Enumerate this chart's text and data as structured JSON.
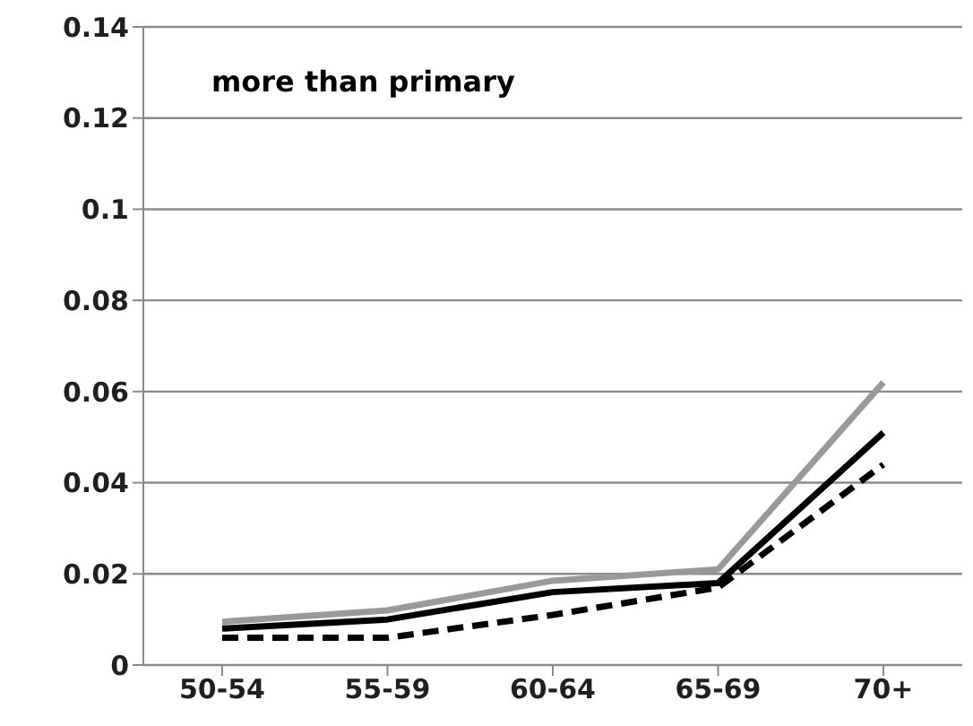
{
  "chart_data": {
    "type": "line",
    "title": "more than primary",
    "categories": [
      "50-54",
      "55-59",
      "60-64",
      "65-69",
      "70+"
    ],
    "series": [
      {
        "color": "#999999",
        "values": [
          0.0095,
          0.012,
          0.0185,
          0.021,
          0.062
        ],
        "line_style": "solid"
      },
      {
        "color": "#000000",
        "values": [
          0.008,
          0.01,
          0.016,
          0.018,
          0.051
        ],
        "line_style": "solid"
      },
      {
        "color": "#000000",
        "values": [
          0.006,
          0.006,
          0.011,
          0.017,
          0.044
        ],
        "line_style": "dashed"
      }
    ],
    "ylim": [
      0,
      0.14
    ],
    "yticks": [
      0,
      0.02,
      0.04,
      0.06,
      0.08,
      0.1,
      0.12,
      0.14
    ],
    "grid": "y",
    "legend": false,
    "marker": "none"
  }
}
